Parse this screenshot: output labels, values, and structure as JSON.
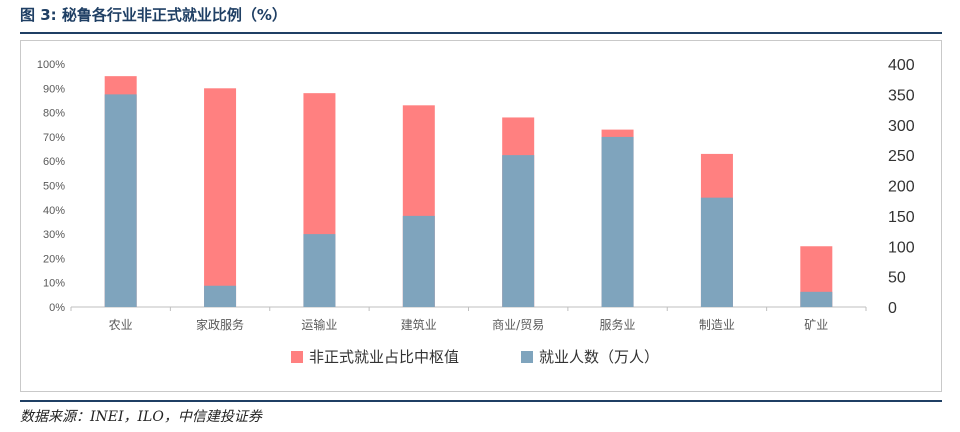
{
  "figure": {
    "title": "图 3: 秘鲁各行业非正式就业比例（%）",
    "source": "数据来源：INEI，ILO，中信建投证券"
  },
  "colors": {
    "series_informal": "#ff8080",
    "series_employment": "#7fa4bd",
    "rule": "#1f3f64",
    "axis_text": "#595959"
  },
  "chart_data": {
    "type": "bar",
    "categories": [
      "农业",
      "家政服务",
      "运输业",
      "建筑业",
      "商业/贸易",
      "服务业",
      "制造业",
      "矿业"
    ],
    "series": [
      {
        "name": "非正式就业占比中枢值",
        "axis": "left",
        "unit": "%",
        "values": [
          95,
          90,
          88,
          83,
          78,
          73,
          63,
          25
        ]
      },
      {
        "name": "就业人数（万人）",
        "axis": "right",
        "values": [
          350,
          35,
          120,
          150,
          250,
          280,
          180,
          25
        ]
      }
    ],
    "y_left": {
      "min": 0,
      "max": 100,
      "ticks": [
        "0%",
        "10%",
        "20%",
        "30%",
        "40%",
        "50%",
        "60%",
        "70%",
        "80%",
        "90%",
        "100%"
      ]
    },
    "y_right": {
      "min": 0,
      "max": 400,
      "ticks": [
        "0",
        "50",
        "100",
        "150",
        "200",
        "250",
        "300",
        "350",
        "400"
      ]
    },
    "grid": false,
    "legend": "bottom"
  }
}
